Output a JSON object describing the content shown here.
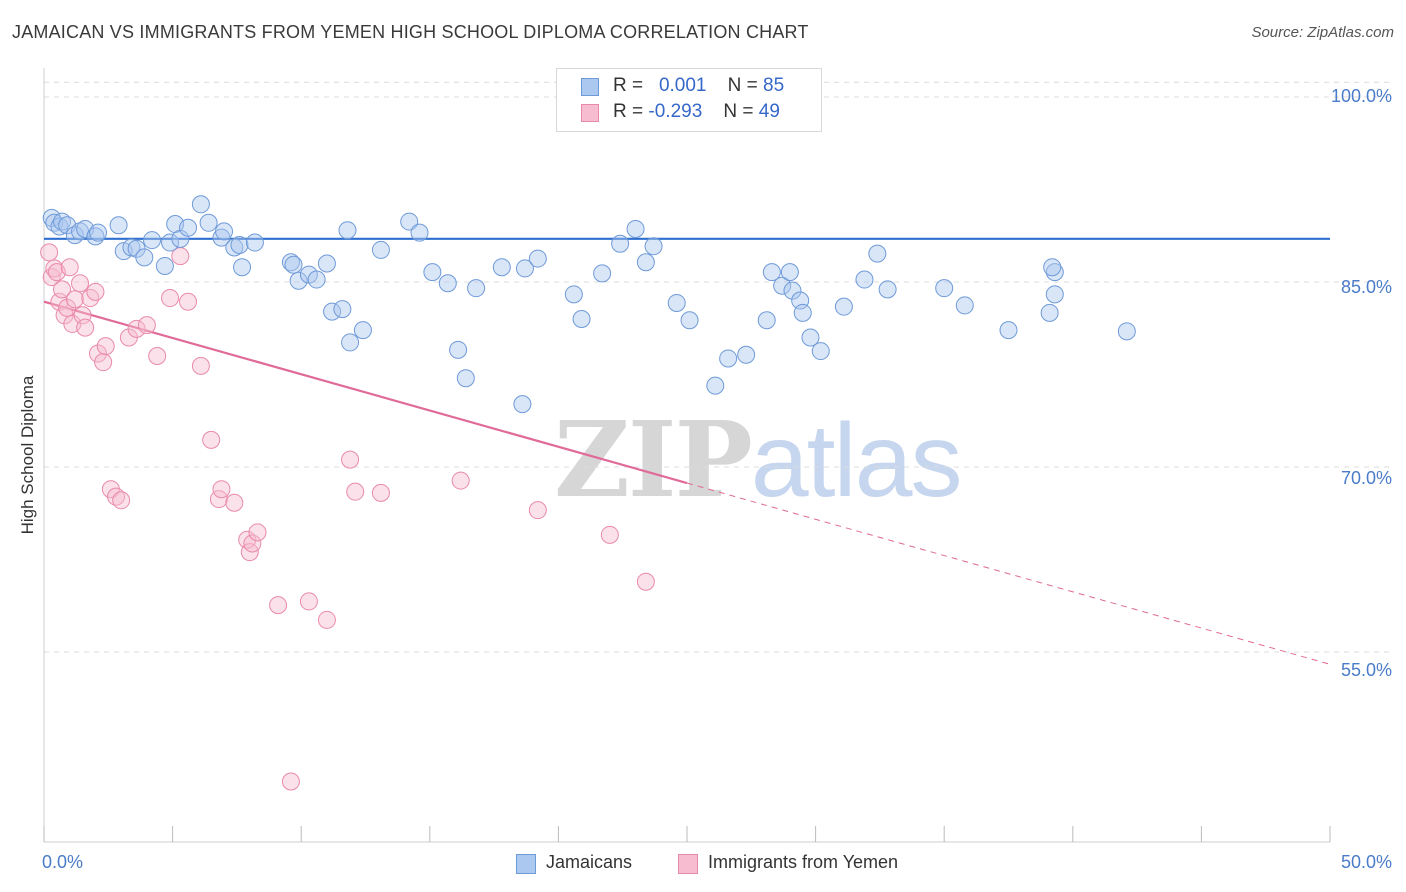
{
  "header": {
    "title": "JAMAICAN VS IMMIGRANTS FROM YEMEN HIGH SCHOOL DIPLOMA CORRELATION CHART",
    "source": "Source: ZipAtlas.com"
  },
  "legend": {
    "rows": [
      {
        "r_label": "R =",
        "r_value": "0.001",
        "n_label": "N =",
        "n_value": "85"
      },
      {
        "r_label": "R =",
        "r_value": "-0.293",
        "n_label": "N =",
        "n_value": "49"
      }
    ]
  },
  "bottom_legend": {
    "jamaicans": "Jamaicans",
    "yemen": "Immigrants from Yemen"
  },
  "watermark": {
    "zip": "ZIP",
    "atlas": "atlas"
  },
  "colors": {
    "blue_fill": "#aac8f0",
    "blue_stroke": "#6f9ad8",
    "blue_line": "#2f6fd0",
    "pink_fill": "#f7bccf",
    "pink_stroke": "#e98aac",
    "pink_line": "#e06a98",
    "grid": "#dcdcdc",
    "tick_text": "#4a7cc9"
  },
  "chart_data": {
    "type": "scatter",
    "title": "JAMAICAN VS IMMIGRANTS FROM YEMEN HIGH SCHOOL DIPLOMA CORRELATION CHART",
    "xlabel": "",
    "ylabel": "High School Diploma",
    "xlim": [
      0,
      50
    ],
    "ylim": [
      40,
      102
    ],
    "x_ticks": [
      "0.0%",
      "50.0%"
    ],
    "y_ticks": [
      "100.0%",
      "85.0%",
      "70.0%",
      "55.0%"
    ],
    "y_tick_values": [
      100,
      85,
      70,
      55
    ],
    "grid": "horizontal dashed",
    "legend_position": "top-center",
    "series": [
      {
        "name": "Jamaicans",
        "color": "#aac8f0",
        "R": 0.001,
        "N": 85,
        "trend": {
          "x": [
            0,
            50
          ],
          "y": [
            88.5,
            88.5
          ]
        },
        "points": [
          [
            0.3,
            90.2
          ],
          [
            0.4,
            89.8
          ],
          [
            0.6,
            89.5
          ],
          [
            0.7,
            89.9
          ],
          [
            0.9,
            89.6
          ],
          [
            1.2,
            88.8
          ],
          [
            1.4,
            89.1
          ],
          [
            1.6,
            89.3
          ],
          [
            2.0,
            88.7
          ],
          [
            2.1,
            89.0
          ],
          [
            2.9,
            89.6
          ],
          [
            3.1,
            87.5
          ],
          [
            3.4,
            87.8
          ],
          [
            3.6,
            87.7
          ],
          [
            3.9,
            87.0
          ],
          [
            4.2,
            88.4
          ],
          [
            4.7,
            86.3
          ],
          [
            4.9,
            88.2
          ],
          [
            5.1,
            89.7
          ],
          [
            5.3,
            88.5
          ],
          [
            5.6,
            89.4
          ],
          [
            6.1,
            91.3
          ],
          [
            6.4,
            89.8
          ],
          [
            6.9,
            88.6
          ],
          [
            7.0,
            89.1
          ],
          [
            7.4,
            87.8
          ],
          [
            7.6,
            88.0
          ],
          [
            7.7,
            86.2
          ],
          [
            8.2,
            88.2
          ],
          [
            9.6,
            86.6
          ],
          [
            9.7,
            86.4
          ],
          [
            9.9,
            85.1
          ],
          [
            10.3,
            85.6
          ],
          [
            10.6,
            85.2
          ],
          [
            11.0,
            86.5
          ],
          [
            11.2,
            82.6
          ],
          [
            11.6,
            82.8
          ],
          [
            11.9,
            80.1
          ],
          [
            11.8,
            89.2
          ],
          [
            12.4,
            81.1
          ],
          [
            13.1,
            87.6
          ],
          [
            14.2,
            89.9
          ],
          [
            14.6,
            89.0
          ],
          [
            15.1,
            85.8
          ],
          [
            15.7,
            84.9
          ],
          [
            16.1,
            79.5
          ],
          [
            16.4,
            77.2
          ],
          [
            16.8,
            84.5
          ],
          [
            17.8,
            86.2
          ],
          [
            18.6,
            75.1
          ],
          [
            18.7,
            86.1
          ],
          [
            19.2,
            86.9
          ],
          [
            20.6,
            84.0
          ],
          [
            20.9,
            82.0
          ],
          [
            21.7,
            85.7
          ],
          [
            22.4,
            88.1
          ],
          [
            23.0,
            89.3
          ],
          [
            23.4,
            86.6
          ],
          [
            23.7,
            87.9
          ],
          [
            24.6,
            83.3
          ],
          [
            25.1,
            81.9
          ],
          [
            26.1,
            76.6
          ],
          [
            26.6,
            78.8
          ],
          [
            27.3,
            79.1
          ],
          [
            28.1,
            81.9
          ],
          [
            28.3,
            85.8
          ],
          [
            28.7,
            84.7
          ],
          [
            29.0,
            85.8
          ],
          [
            29.1,
            84.3
          ],
          [
            29.4,
            83.5
          ],
          [
            29.5,
            82.5
          ],
          [
            29.8,
            80.5
          ],
          [
            30.2,
            79.4
          ],
          [
            31.1,
            83.0
          ],
          [
            31.9,
            85.2
          ],
          [
            32.4,
            87.3
          ],
          [
            32.8,
            84.4
          ],
          [
            35.0,
            84.5
          ],
          [
            35.8,
            83.1
          ],
          [
            37.5,
            81.1
          ],
          [
            39.1,
            82.5
          ],
          [
            39.3,
            84.0
          ],
          [
            39.3,
            85.8
          ],
          [
            39.2,
            86.2
          ],
          [
            42.1,
            81.0
          ]
        ]
      },
      {
        "name": "Immigrants from Yemen",
        "color": "#f7bccf",
        "R": -0.293,
        "N": 49,
        "trend": {
          "x": [
            0,
            25
          ],
          "y": [
            83.4,
            68.7
          ]
        },
        "trend_dashed": {
          "x": [
            25,
            50
          ],
          "y": [
            68.7,
            54.0
          ]
        },
        "points": [
          [
            0.2,
            87.4
          ],
          [
            0.3,
            85.4
          ],
          [
            0.4,
            86.1
          ],
          [
            0.5,
            85.8
          ],
          [
            0.6,
            83.4
          ],
          [
            0.7,
            84.4
          ],
          [
            0.8,
            82.3
          ],
          [
            0.9,
            82.9
          ],
          [
            1.0,
            86.2
          ],
          [
            1.1,
            81.6
          ],
          [
            1.2,
            83.6
          ],
          [
            1.4,
            84.9
          ],
          [
            1.5,
            82.3
          ],
          [
            1.6,
            81.3
          ],
          [
            1.8,
            83.7
          ],
          [
            2.0,
            84.2
          ],
          [
            2.1,
            79.2
          ],
          [
            2.3,
            78.5
          ],
          [
            2.4,
            79.8
          ],
          [
            2.6,
            68.2
          ],
          [
            2.8,
            67.6
          ],
          [
            3.0,
            67.3
          ],
          [
            3.3,
            80.5
          ],
          [
            3.6,
            81.2
          ],
          [
            4.0,
            81.5
          ],
          [
            4.4,
            79.0
          ],
          [
            4.9,
            83.7
          ],
          [
            5.3,
            87.1
          ],
          [
            5.6,
            83.4
          ],
          [
            6.1,
            78.2
          ],
          [
            6.5,
            72.2
          ],
          [
            6.8,
            67.4
          ],
          [
            6.9,
            68.2
          ],
          [
            7.4,
            67.1
          ],
          [
            7.9,
            64.1
          ],
          [
            8.0,
            63.1
          ],
          [
            8.1,
            63.8
          ],
          [
            8.3,
            64.7
          ],
          [
            9.1,
            58.8
          ],
          [
            9.6,
            44.5
          ],
          [
            10.3,
            59.1
          ],
          [
            11.0,
            57.6
          ],
          [
            11.9,
            70.6
          ],
          [
            12.1,
            68.0
          ],
          [
            13.1,
            67.9
          ],
          [
            16.2,
            68.9
          ],
          [
            19.2,
            66.5
          ],
          [
            22.0,
            64.5
          ],
          [
            23.4,
            60.7
          ]
        ]
      }
    ]
  }
}
